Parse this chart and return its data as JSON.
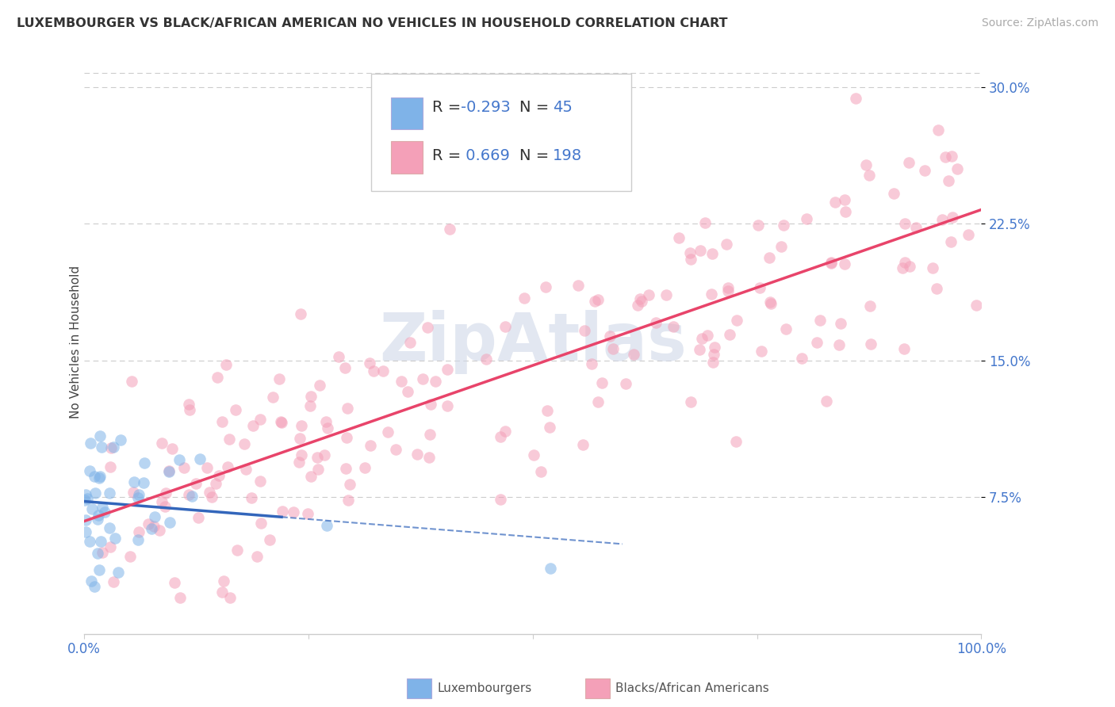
{
  "title": "LUXEMBOURGER VS BLACK/AFRICAN AMERICAN NO VEHICLES IN HOUSEHOLD CORRELATION CHART",
  "source": "Source: ZipAtlas.com",
  "ylabel": "No Vehicles in Household",
  "legend_blue_r": "-0.293",
  "legend_blue_n": "45",
  "legend_pink_r": "0.669",
  "legend_pink_n": "198",
  "blue_color": "#7fb3e8",
  "pink_color": "#f4a0b8",
  "blue_line_color": "#3366bb",
  "pink_line_color": "#e8446a",
  "ytick_vals": [
    0.075,
    0.15,
    0.225,
    0.3
  ],
  "ytick_labels": [
    "7.5%",
    "15.0%",
    "22.5%",
    "30.0%"
  ],
  "xlim": [
    0.0,
    1.0
  ],
  "ylim": [
    0.0,
    0.32
  ],
  "tick_color": "#4477cc",
  "grid_color": "#cccccc",
  "watermark_color": "#d0d8e8",
  "scatter_size": 110,
  "scatter_alpha": 0.55
}
